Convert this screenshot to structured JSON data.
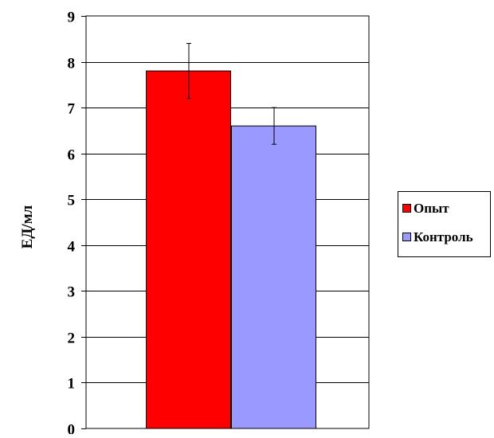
{
  "chart_data": {
    "type": "bar",
    "ylabel": "ЕД/мл",
    "ylim": [
      0,
      9
    ],
    "yticks": [
      0,
      1,
      2,
      3,
      4,
      5,
      6,
      7,
      8,
      9
    ],
    "grid": true,
    "legend_position": "right",
    "series": [
      {
        "name": "Опыт",
        "value": 7.8,
        "error": 0.6,
        "color": "#ff0000"
      },
      {
        "name": "Контроль",
        "value": 6.6,
        "error": 0.4,
        "color": "#9999ff"
      }
    ]
  }
}
